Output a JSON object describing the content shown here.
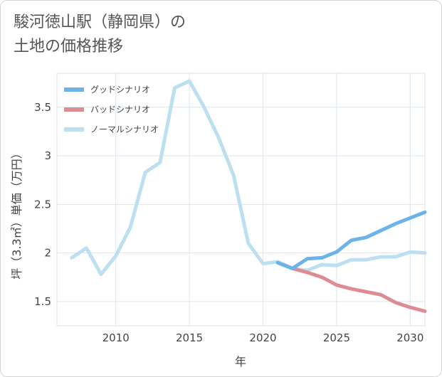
{
  "title_lines": [
    "駿河徳山駅（静岡県）の",
    "土地の価格推移"
  ],
  "chart_data": {
    "type": "line",
    "xlabel": "年",
    "ylabel": "坪（3.3㎡）単価（万円）",
    "xlim": [
      2006,
      2031
    ],
    "ylim": [
      1.25,
      3.85
    ],
    "xticks": [
      2010,
      2015,
      2020,
      2025,
      2030
    ],
    "yticks": [
      1.5,
      2,
      2.5,
      3,
      3.5
    ],
    "ytick_labels": [
      "1.5",
      "2",
      "2.5",
      "3",
      "3.5"
    ],
    "grid": true,
    "legend_position": "top-left",
    "series": [
      {
        "name": "グッドシナリオ",
        "color": "#6cb4e8",
        "x": [
          2021,
          2022,
          2023,
          2024,
          2025,
          2026,
          2027,
          2028,
          2029,
          2030,
          2031
        ],
        "y": [
          1.9,
          1.84,
          1.94,
          1.95,
          2.01,
          2.13,
          2.16,
          2.23,
          2.3,
          2.36,
          2.42
        ]
      },
      {
        "name": "バッドシナリオ",
        "color": "#de8c94",
        "x": [
          2021,
          2022,
          2023,
          2024,
          2025,
          2026,
          2027,
          2028,
          2029,
          2030,
          2031
        ],
        "y": [
          1.9,
          1.84,
          1.8,
          1.75,
          1.67,
          1.63,
          1.6,
          1.57,
          1.49,
          1.44,
          1.4
        ]
      },
      {
        "name": "ノーマルシナリオ",
        "color": "#bde0f0",
        "x": [
          2007,
          2008,
          2009,
          2010,
          2011,
          2012,
          2013,
          2014,
          2015,
          2016,
          2017,
          2018,
          2019,
          2020,
          2021,
          2022,
          2023,
          2024,
          2025,
          2026,
          2027,
          2028,
          2029,
          2030,
          2031
        ],
        "y": [
          1.95,
          2.05,
          1.78,
          1.97,
          2.27,
          2.83,
          2.93,
          3.7,
          3.77,
          3.5,
          3.18,
          2.8,
          2.1,
          1.89,
          1.91,
          1.84,
          1.82,
          1.88,
          1.87,
          1.93,
          1.93,
          1.96,
          1.96,
          2.01,
          2.0
        ]
      }
    ]
  }
}
